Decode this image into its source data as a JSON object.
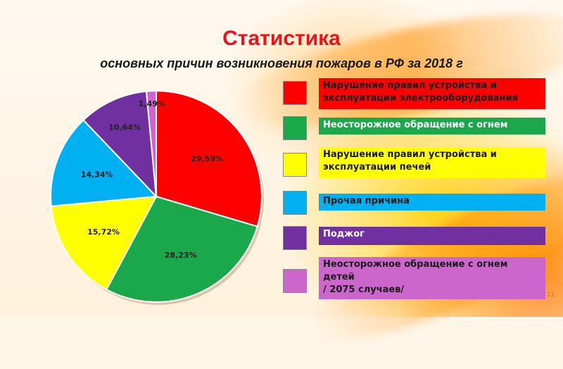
{
  "title": "Статистика",
  "subtitle": "основных причин возникновения пожаров в РФ за 2018 г",
  "corner_mark": "11",
  "chart_data": {
    "type": "pie",
    "title": "Статистика",
    "subtitle": "основных причин возникновения пожаров в РФ за 2018 г",
    "legend_position": "right",
    "slices": [
      {
        "label": "Нарушение правил устройства и эксплуатации электрооборудования",
        "value": 29.59,
        "value_label": "29,59%",
        "color": "#ff0000",
        "text_color": "#1a1a1a"
      },
      {
        "label": "Неосторожное обращение с огнем",
        "value": 28.23,
        "value_label": "28,23%",
        "color": "#1aa84a",
        "text_color": "#ffffff"
      },
      {
        "label": "Нарушение правил устройства и\nэксплуатации печей",
        "value": 15.72,
        "value_label": "15,72%",
        "color": "#ffff00",
        "text_color": "#1a1a1a"
      },
      {
        "label": "Прочая причина",
        "value": 14.34,
        "value_label": "14,34%",
        "color": "#00b0f0",
        "text_color": "#1a1a1a"
      },
      {
        "label": "Поджог",
        "value": 10.64,
        "value_label": "10,64%",
        "color": "#7030a0",
        "text_color": "#ffffff"
      },
      {
        "label": "Неосторожное обращение с огнем детей\n/ 2075 случаев/",
        "value": 1.49,
        "value_label": "1,49%",
        "color": "#cc66cc",
        "text_color": "#1a1a1a"
      }
    ]
  }
}
